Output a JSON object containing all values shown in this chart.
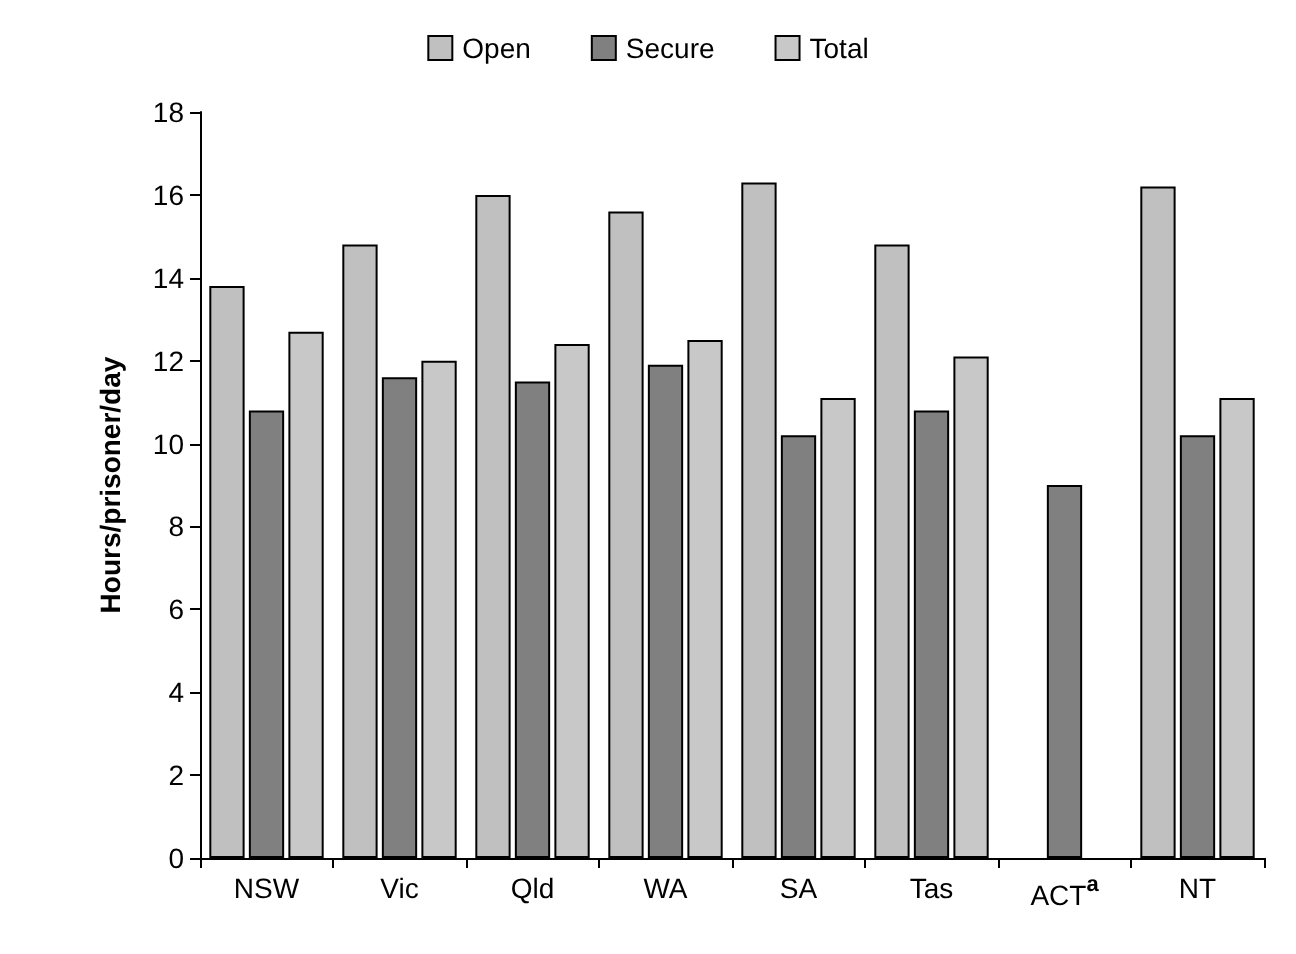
{
  "chart_data": {
    "type": "bar",
    "ylabel": "Hours/prisoner/day",
    "categories": [
      "NSW",
      "Vic",
      "Qld",
      "WA",
      "SA",
      "Tas",
      "ACT$^{a}$",
      "NT"
    ],
    "series": [
      {
        "name": "Open",
        "color": "#c0c0c0",
        "values": [
          13.8,
          14.8,
          16.0,
          15.6,
          16.3,
          14.8,
          null,
          16.2
        ]
      },
      {
        "name": "Secure",
        "color": "#808080",
        "values": [
          10.8,
          11.6,
          11.5,
          11.9,
          10.2,
          10.8,
          9.0,
          10.2
        ]
      },
      {
        "name": "Total",
        "color": "#c8c8c8",
        "values": [
          12.7,
          12.0,
          12.4,
          12.5,
          11.1,
          12.1,
          null,
          11.1
        ]
      }
    ],
    "ylim": [
      0,
      18
    ],
    "yticks": [
      0,
      2,
      4,
      6,
      8,
      10,
      12,
      14,
      16,
      18
    ],
    "legend": "top",
    "grid": false
  }
}
